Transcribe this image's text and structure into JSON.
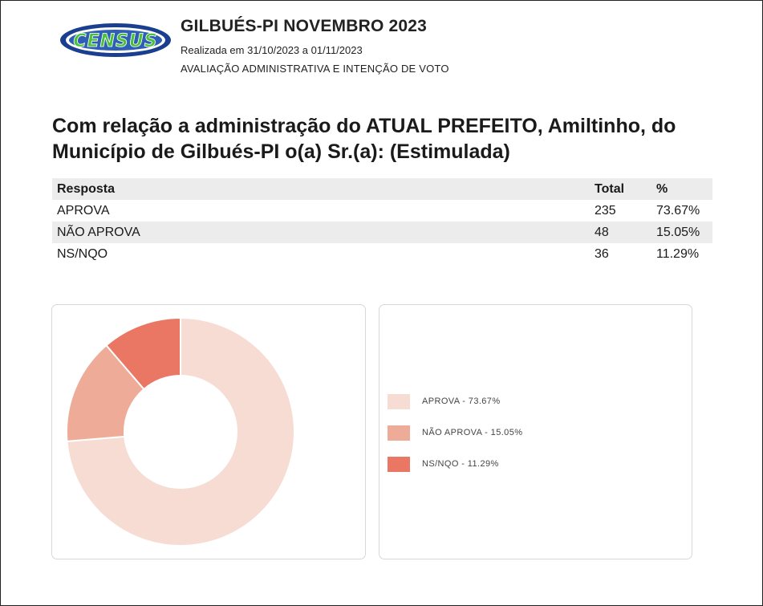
{
  "header": {
    "logo_text": "CENSUS",
    "title": "GILBUÉS-PI NOVEMBRO 2023",
    "date": "Realizada em 31/10/2023 a 01/11/2023",
    "subtitle": "AVALIAÇÃO ADMINISTRATIVA E INTENÇÃO DE VOTO"
  },
  "question": "Com relação a administração do ATUAL PREFEITO, Amiltinho, do Município de Gilbués-PI o(a) Sr.(a): (Estimulada)",
  "table": {
    "headers": [
      "Resposta",
      "Total",
      "%"
    ],
    "rows": [
      [
        "APROVA",
        "235",
        "73.67%"
      ],
      [
        "NÃO APROVA",
        "48",
        "15.05%"
      ],
      [
        "NS/NQO",
        "36",
        "11.29%"
      ]
    ]
  },
  "chart_data": {
    "type": "pie",
    "donut": true,
    "categories": [
      "APROVA",
      "NÃO APROVA",
      "NS/NQO"
    ],
    "values": [
      73.67,
      15.05,
      11.29
    ],
    "colors": [
      "#f6dcd2",
      "#eeab98",
      "#ea7664"
    ],
    "legend": [
      "APROVA - 73.67%",
      "NÃO APROVA - 15.05%",
      "NS/NQO - 11.29%"
    ],
    "legend_position": "right"
  }
}
